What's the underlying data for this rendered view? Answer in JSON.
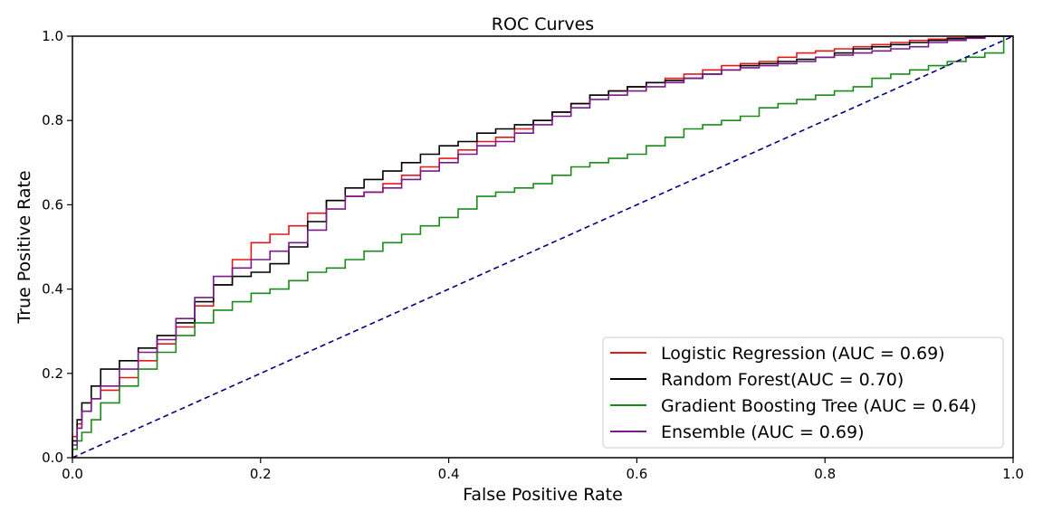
{
  "chart_data": {
    "type": "line",
    "title": "ROC Curves",
    "xlabel": "False Positive Rate",
    "ylabel": "True Positive Rate",
    "xlim": [
      0.0,
      1.0
    ],
    "ylim": [
      0.0,
      1.0
    ],
    "xticks": [
      "0.0",
      "0.2",
      "0.4",
      "0.6",
      "0.8",
      "1.0"
    ],
    "yticks": [
      "0.0",
      "0.2",
      "0.4",
      "0.6",
      "0.8",
      "1.0"
    ],
    "grid": false,
    "legend_position": "lower-right",
    "series": [
      {
        "name": "Logistic Regression (AUC = 0.69)",
        "color": "#e31a1c",
        "style": "step",
        "x": [
          0.0,
          0.005,
          0.01,
          0.02,
          0.03,
          0.05,
          0.07,
          0.09,
          0.11,
          0.13,
          0.15,
          0.17,
          0.19,
          0.21,
          0.23,
          0.25,
          0.27,
          0.29,
          0.31,
          0.33,
          0.35,
          0.37,
          0.39,
          0.41,
          0.43,
          0.45,
          0.47,
          0.49,
          0.51,
          0.53,
          0.55,
          0.57,
          0.59,
          0.61,
          0.63,
          0.65,
          0.67,
          0.69,
          0.71,
          0.73,
          0.75,
          0.77,
          0.79,
          0.81,
          0.83,
          0.85,
          0.87,
          0.89,
          0.91,
          0.93,
          0.95,
          0.97,
          0.99,
          1.0
        ],
        "y": [
          0.0,
          0.05,
          0.08,
          0.11,
          0.14,
          0.16,
          0.19,
          0.23,
          0.27,
          0.31,
          0.36,
          0.41,
          0.47,
          0.51,
          0.53,
          0.55,
          0.58,
          0.61,
          0.62,
          0.63,
          0.65,
          0.67,
          0.69,
          0.71,
          0.73,
          0.75,
          0.76,
          0.78,
          0.8,
          0.82,
          0.84,
          0.86,
          0.87,
          0.88,
          0.89,
          0.9,
          0.91,
          0.92,
          0.93,
          0.935,
          0.94,
          0.95,
          0.96,
          0.965,
          0.97,
          0.975,
          0.98,
          0.985,
          0.99,
          0.993,
          0.996,
          0.998,
          1.0,
          1.0
        ]
      },
      {
        "name": "Random Forest(AUC = 0.70)",
        "color": "#000000",
        "style": "step",
        "x": [
          0.0,
          0.005,
          0.01,
          0.02,
          0.03,
          0.05,
          0.07,
          0.09,
          0.11,
          0.13,
          0.15,
          0.17,
          0.19,
          0.21,
          0.23,
          0.25,
          0.27,
          0.29,
          0.31,
          0.33,
          0.35,
          0.37,
          0.39,
          0.41,
          0.43,
          0.45,
          0.47,
          0.49,
          0.51,
          0.53,
          0.55,
          0.57,
          0.59,
          0.61,
          0.63,
          0.65,
          0.67,
          0.69,
          0.71,
          0.73,
          0.75,
          0.77,
          0.79,
          0.81,
          0.83,
          0.85,
          0.87,
          0.89,
          0.91,
          0.93,
          0.95,
          0.97,
          0.99,
          1.0
        ],
        "y": [
          0.0,
          0.04,
          0.09,
          0.13,
          0.17,
          0.21,
          0.23,
          0.26,
          0.29,
          0.32,
          0.37,
          0.41,
          0.43,
          0.44,
          0.46,
          0.5,
          0.56,
          0.61,
          0.64,
          0.66,
          0.68,
          0.7,
          0.72,
          0.74,
          0.75,
          0.77,
          0.78,
          0.79,
          0.8,
          0.82,
          0.84,
          0.86,
          0.87,
          0.88,
          0.89,
          0.895,
          0.9,
          0.91,
          0.92,
          0.93,
          0.935,
          0.94,
          0.945,
          0.95,
          0.96,
          0.97,
          0.975,
          0.98,
          0.985,
          0.99,
          0.994,
          0.997,
          1.0,
          1.0
        ]
      },
      {
        "name": "Gradient Boosting Tree (AUC = 0.64)",
        "color": "#1a8a1a",
        "style": "step",
        "x": [
          0.0,
          0.005,
          0.01,
          0.02,
          0.03,
          0.05,
          0.07,
          0.09,
          0.11,
          0.13,
          0.15,
          0.17,
          0.19,
          0.21,
          0.23,
          0.25,
          0.27,
          0.29,
          0.31,
          0.33,
          0.35,
          0.37,
          0.39,
          0.41,
          0.43,
          0.45,
          0.47,
          0.49,
          0.51,
          0.53,
          0.55,
          0.57,
          0.59,
          0.61,
          0.63,
          0.65,
          0.67,
          0.69,
          0.71,
          0.73,
          0.75,
          0.77,
          0.79,
          0.81,
          0.83,
          0.85,
          0.87,
          0.89,
          0.91,
          0.93,
          0.95,
          0.97,
          0.99,
          1.0
        ],
        "y": [
          0.0,
          0.02,
          0.04,
          0.06,
          0.09,
          0.13,
          0.17,
          0.21,
          0.25,
          0.29,
          0.32,
          0.35,
          0.37,
          0.39,
          0.4,
          0.42,
          0.44,
          0.45,
          0.47,
          0.49,
          0.51,
          0.53,
          0.55,
          0.57,
          0.59,
          0.62,
          0.63,
          0.64,
          0.65,
          0.67,
          0.69,
          0.7,
          0.71,
          0.72,
          0.74,
          0.76,
          0.78,
          0.79,
          0.8,
          0.81,
          0.83,
          0.84,
          0.85,
          0.86,
          0.87,
          0.88,
          0.9,
          0.91,
          0.92,
          0.93,
          0.94,
          0.95,
          0.96,
          1.0
        ]
      },
      {
        "name": "Ensemble (AUC = 0.69)",
        "color": "#7a1a8a",
        "style": "step",
        "x": [
          0.0,
          0.005,
          0.01,
          0.02,
          0.03,
          0.05,
          0.07,
          0.09,
          0.11,
          0.13,
          0.15,
          0.17,
          0.19,
          0.21,
          0.23,
          0.25,
          0.27,
          0.29,
          0.31,
          0.33,
          0.35,
          0.37,
          0.39,
          0.41,
          0.43,
          0.45,
          0.47,
          0.49,
          0.51,
          0.53,
          0.55,
          0.57,
          0.59,
          0.61,
          0.63,
          0.65,
          0.67,
          0.69,
          0.71,
          0.73,
          0.75,
          0.77,
          0.79,
          0.81,
          0.83,
          0.85,
          0.87,
          0.89,
          0.91,
          0.93,
          0.95,
          0.97,
          0.99,
          1.0
        ],
        "y": [
          0.0,
          0.03,
          0.07,
          0.11,
          0.14,
          0.17,
          0.21,
          0.25,
          0.28,
          0.33,
          0.38,
          0.43,
          0.45,
          0.47,
          0.49,
          0.51,
          0.54,
          0.59,
          0.62,
          0.63,
          0.64,
          0.66,
          0.68,
          0.7,
          0.72,
          0.74,
          0.75,
          0.77,
          0.79,
          0.81,
          0.83,
          0.85,
          0.86,
          0.87,
          0.88,
          0.89,
          0.9,
          0.91,
          0.92,
          0.925,
          0.93,
          0.935,
          0.94,
          0.95,
          0.955,
          0.96,
          0.965,
          0.97,
          0.975,
          0.985,
          0.99,
          0.995,
          1.0,
          1.0
        ]
      },
      {
        "name": "",
        "color": "#000080",
        "style": "dashed",
        "x": [
          0.0,
          1.0
        ],
        "y": [
          0.0,
          1.0
        ]
      }
    ]
  }
}
